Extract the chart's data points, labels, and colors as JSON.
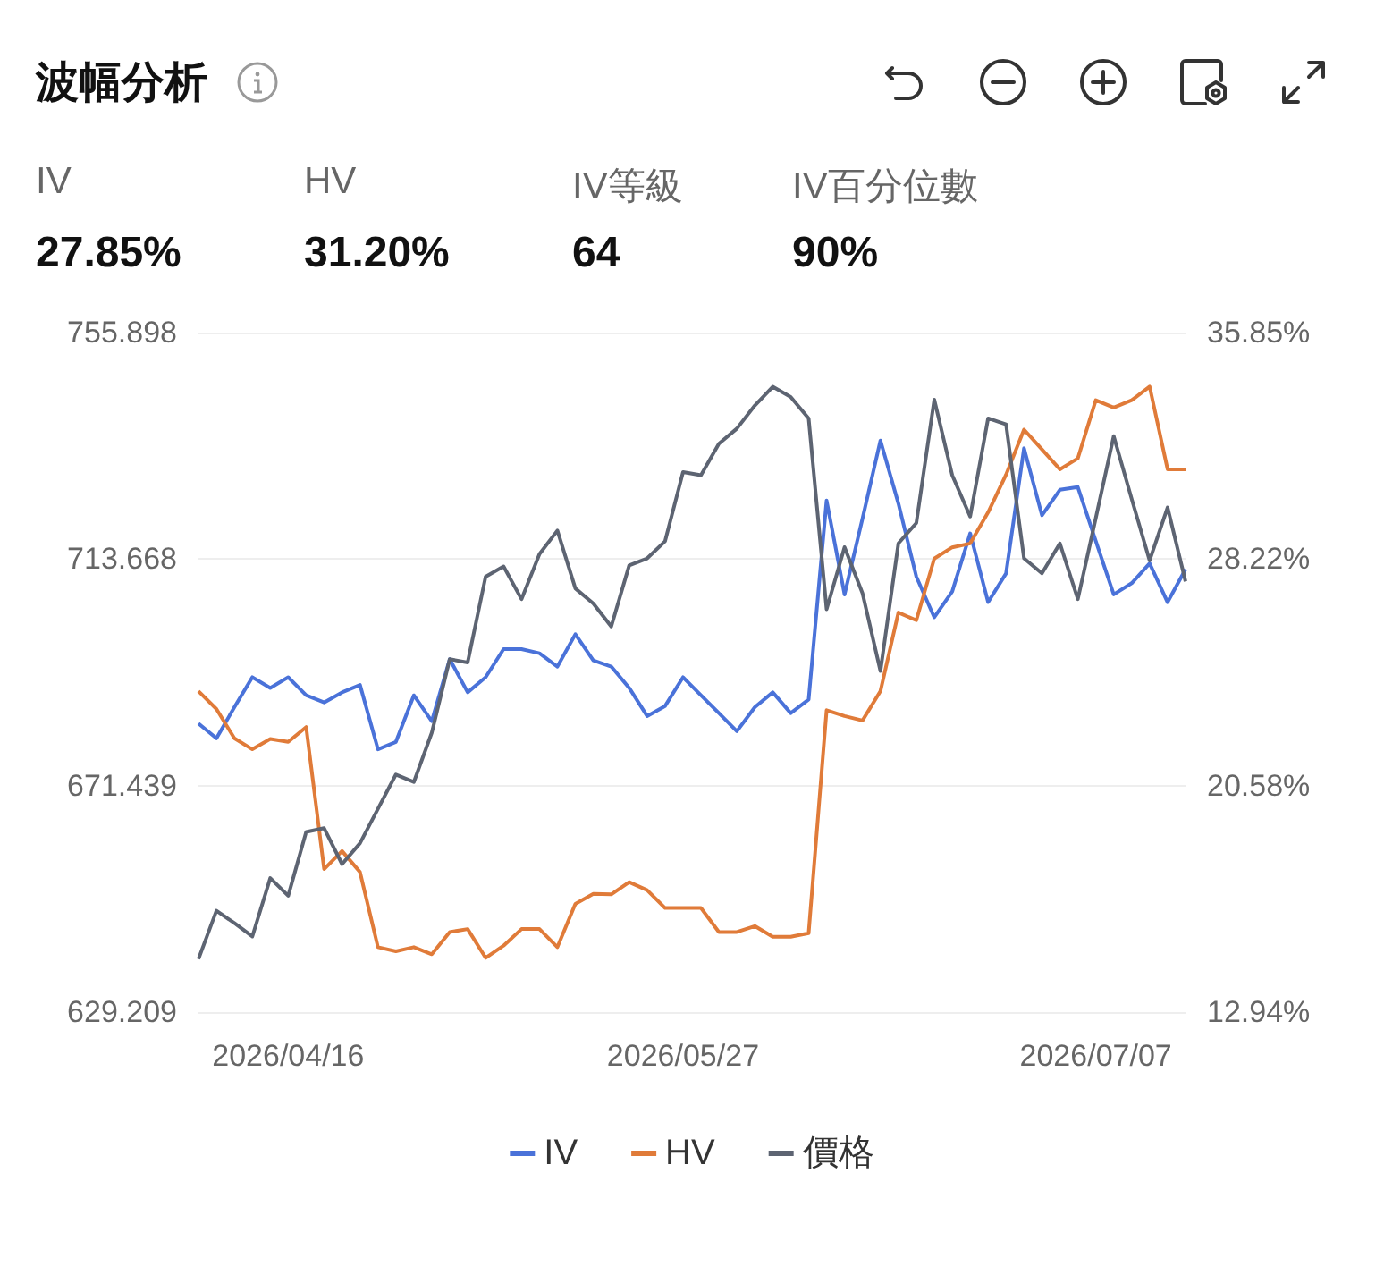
{
  "chart_data": [
    {
      "type": "other",
      "title": "波幅分析",
      "categories": [
        "IV",
        "HV",
        "IV等級",
        "IV百分位數"
      ],
      "value_labels": [
        "27.85%",
        "31.20%",
        "64",
        "90%"
      ]
    },
    {
      "type": "line",
      "categories": [
        null,
        null,
        null,
        null,
        null,
        "2026/04/16",
        null,
        null,
        null,
        null,
        null,
        null,
        null,
        null,
        null,
        null,
        null,
        null,
        null,
        null,
        null,
        null,
        null,
        null,
        null,
        null,
        null,
        "2026/05/27",
        null,
        null,
        null,
        null,
        null,
        null,
        null,
        null,
        null,
        null,
        null,
        null,
        null,
        null,
        null,
        null,
        null,
        null,
        null,
        null,
        null,
        null,
        "2026/07/07",
        null,
        null,
        null,
        null,
        null
      ],
      "series": [
        {
          "name": "IV",
          "color": "#4a72d9",
          "axis": "y2",
          "values": [
            22.67,
            22.17,
            23.22,
            24.23,
            23.87,
            24.23,
            23.62,
            23.38,
            23.72,
            23.97,
            21.8,
            22.05,
            23.62,
            22.75,
            24.84,
            23.72,
            24.23,
            25.18,
            25.18,
            25.04,
            24.59,
            25.68,
            24.8,
            24.59,
            23.87,
            22.92,
            23.26,
            24.23,
            23.62,
            23.02,
            22.41,
            23.22,
            23.72,
            23.02,
            23.48,
            30.19,
            27.02,
            29.58,
            32.21,
            30.09,
            27.62,
            26.25,
            27.12,
            29.08,
            26.76,
            27.73,
            31.95,
            29.69,
            30.55,
            30.64,
            28.82,
            27.02,
            27.4,
            28.07,
            26.76,
            27.87
          ]
        },
        {
          "name": "HV",
          "color": "#e07b39",
          "axis": "y2",
          "values": [
            23.76,
            23.16,
            22.17,
            21.8,
            22.15,
            22.05,
            22.55,
            17.76,
            18.37,
            17.66,
            15.13,
            14.99,
            15.13,
            14.89,
            15.64,
            15.74,
            14.77,
            15.18,
            15.74,
            15.74,
            15.13,
            16.59,
            16.93,
            16.91,
            17.32,
            17.05,
            16.45,
            16.45,
            16.45,
            15.64,
            15.64,
            15.84,
            15.48,
            15.48,
            15.6,
            23.12,
            22.92,
            22.77,
            23.76,
            26.41,
            26.15,
            28.23,
            28.61,
            28.74,
            29.79,
            31.06,
            32.58,
            31.91,
            31.24,
            31.61,
            33.57,
            33.32,
            33.57,
            34.03,
            31.24,
            31.24
          ]
        },
        {
          "name": "價格",
          "color": "#5d6472",
          "axis": "y",
          "values": [
            639.1,
            648.1,
            645.8,
            643.3,
            654.2,
            650.9,
            662.8,
            663.5,
            656.8,
            660.7,
            667.1,
            673.5,
            672.1,
            681.3,
            695.0,
            694.4,
            710.4,
            712.3,
            706.2,
            714.6,
            719.0,
            708.2,
            705.4,
            701.1,
            712.5,
            713.8,
            717.0,
            729.9,
            729.3,
            735.2,
            738.0,
            742.3,
            745.8,
            743.9,
            739.9,
            704.3,
            715.9,
            707.3,
            692.8,
            716.6,
            720.4,
            743.4,
            729.3,
            721.6,
            739.9,
            738.8,
            713.8,
            711.0,
            716.6,
            706.2,
            721.3,
            736.6,
            724.9,
            713.4,
            723.3,
            709.5
          ]
        }
      ],
      "ylim": [
        629.209,
        755.898
      ],
      "yticks": [
        629.209,
        671.439,
        713.668,
        755.898
      ],
      "y2lim": [
        12.94,
        35.85
      ],
      "y2ticks": [
        {
          "value": 12.94,
          "label": "12.94%"
        },
        {
          "value": 20.58,
          "label": "20.58%"
        },
        {
          "value": 28.22,
          "label": "28.22%"
        },
        {
          "value": 35.85,
          "label": "35.85%"
        }
      ],
      "grid": "y",
      "legend": "bottom",
      "marker": "none",
      "line_style": "solid"
    }
  ]
}
